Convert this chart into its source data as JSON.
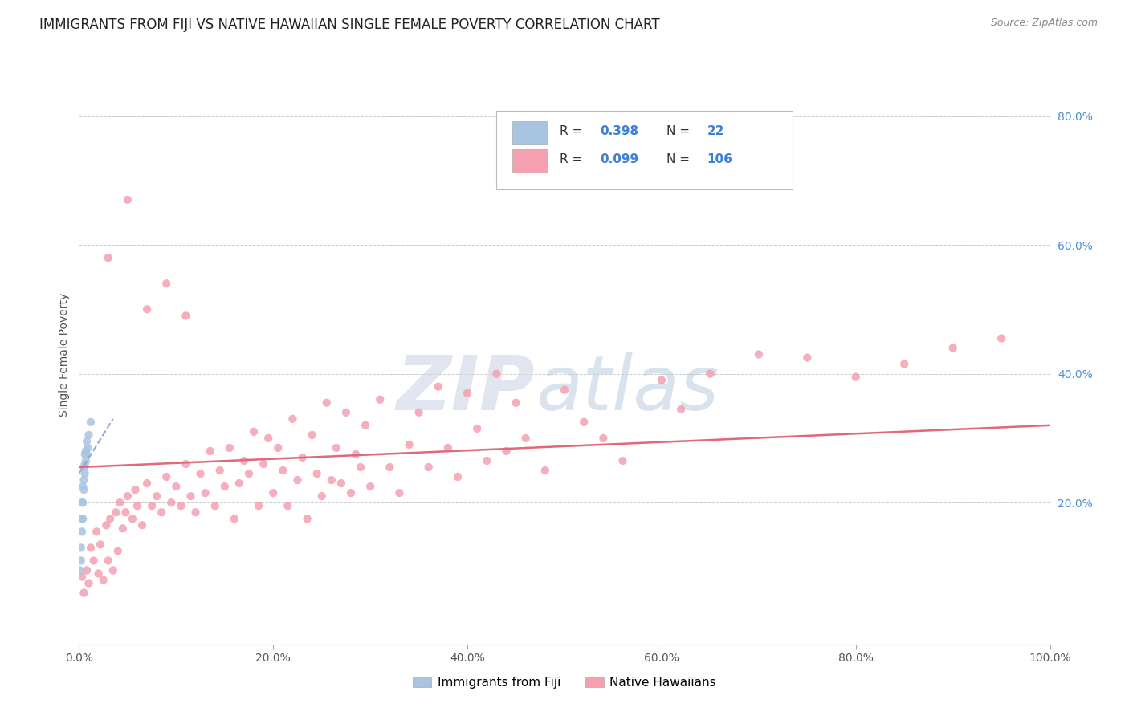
{
  "title": "IMMIGRANTS FROM FIJI VS NATIVE HAWAIIAN SINGLE FEMALE POVERTY CORRELATION CHART",
  "source": "Source: ZipAtlas.com",
  "ylabel": "Single Female Poverty",
  "xlim": [
    0.0,
    1.0
  ],
  "ylim": [
    -0.02,
    0.88
  ],
  "plot_ylim": [
    -0.02,
    0.88
  ],
  "x_tick_labels": [
    "0.0%",
    "20.0%",
    "40.0%",
    "60.0%",
    "80.0%",
    "100.0%"
  ],
  "x_tick_positions": [
    0.0,
    0.2,
    0.4,
    0.6,
    0.8,
    1.0
  ],
  "y_tick_labels": [
    "20.0%",
    "40.0%",
    "60.0%",
    "80.0%"
  ],
  "y_tick_positions": [
    0.2,
    0.4,
    0.6,
    0.8
  ],
  "fiji_color": "#a8c4e0",
  "native_color": "#f4a0b0",
  "trend_fiji_color": "#90aed0",
  "trend_native_color": "#e06878",
  "watermark_color": "#ccdcee",
  "fiji_scatter_x": [
    0.001,
    0.002,
    0.002,
    0.003,
    0.003,
    0.003,
    0.004,
    0.004,
    0.004,
    0.005,
    0.005,
    0.005,
    0.006,
    0.006,
    0.006,
    0.007,
    0.007,
    0.008,
    0.008,
    0.009,
    0.01,
    0.012
  ],
  "fiji_scatter_y": [
    0.095,
    0.11,
    0.13,
    0.155,
    0.175,
    0.2,
    0.175,
    0.2,
    0.225,
    0.22,
    0.235,
    0.255,
    0.245,
    0.26,
    0.275,
    0.265,
    0.28,
    0.275,
    0.295,
    0.285,
    0.305,
    0.325
  ],
  "native_scatter_x": [
    0.003,
    0.005,
    0.008,
    0.01,
    0.012,
    0.015,
    0.018,
    0.02,
    0.022,
    0.025,
    0.028,
    0.03,
    0.032,
    0.035,
    0.038,
    0.04,
    0.042,
    0.045,
    0.048,
    0.05,
    0.055,
    0.058,
    0.06,
    0.065,
    0.07,
    0.075,
    0.08,
    0.085,
    0.09,
    0.095,
    0.1,
    0.105,
    0.11,
    0.115,
    0.12,
    0.125,
    0.13,
    0.135,
    0.14,
    0.145,
    0.15,
    0.155,
    0.16,
    0.165,
    0.17,
    0.175,
    0.18,
    0.185,
    0.19,
    0.195,
    0.2,
    0.205,
    0.21,
    0.215,
    0.22,
    0.225,
    0.23,
    0.235,
    0.24,
    0.245,
    0.25,
    0.255,
    0.26,
    0.265,
    0.27,
    0.275,
    0.28,
    0.285,
    0.29,
    0.295,
    0.3,
    0.31,
    0.32,
    0.33,
    0.34,
    0.35,
    0.36,
    0.37,
    0.38,
    0.39,
    0.4,
    0.41,
    0.42,
    0.43,
    0.44,
    0.45,
    0.46,
    0.48,
    0.5,
    0.52,
    0.54,
    0.56,
    0.6,
    0.62,
    0.65,
    0.7,
    0.75,
    0.8,
    0.85,
    0.9,
    0.95,
    0.03,
    0.05,
    0.07,
    0.09,
    0.11
  ],
  "native_scatter_y": [
    0.085,
    0.06,
    0.095,
    0.075,
    0.13,
    0.11,
    0.155,
    0.09,
    0.135,
    0.08,
    0.165,
    0.11,
    0.175,
    0.095,
    0.185,
    0.125,
    0.2,
    0.16,
    0.185,
    0.21,
    0.175,
    0.22,
    0.195,
    0.165,
    0.23,
    0.195,
    0.21,
    0.185,
    0.24,
    0.2,
    0.225,
    0.195,
    0.26,
    0.21,
    0.185,
    0.245,
    0.215,
    0.28,
    0.195,
    0.25,
    0.225,
    0.285,
    0.175,
    0.23,
    0.265,
    0.245,
    0.31,
    0.195,
    0.26,
    0.3,
    0.215,
    0.285,
    0.25,
    0.195,
    0.33,
    0.235,
    0.27,
    0.175,
    0.305,
    0.245,
    0.21,
    0.355,
    0.235,
    0.285,
    0.23,
    0.34,
    0.215,
    0.275,
    0.255,
    0.32,
    0.225,
    0.36,
    0.255,
    0.215,
    0.29,
    0.34,
    0.255,
    0.38,
    0.285,
    0.24,
    0.37,
    0.315,
    0.265,
    0.4,
    0.28,
    0.355,
    0.3,
    0.25,
    0.375,
    0.325,
    0.3,
    0.265,
    0.39,
    0.345,
    0.4,
    0.43,
    0.425,
    0.395,
    0.415,
    0.44,
    0.455,
    0.58,
    0.67,
    0.5,
    0.54,
    0.49
  ],
  "fiji_trend_start_x": 0.0,
  "fiji_trend_start_y": 0.245,
  "fiji_trend_end_x": 0.035,
  "fiji_trend_end_y": 0.33,
  "native_trend_start_x": 0.0,
  "native_trend_start_y": 0.255,
  "native_trend_end_x": 1.0,
  "native_trend_end_y": 0.32
}
